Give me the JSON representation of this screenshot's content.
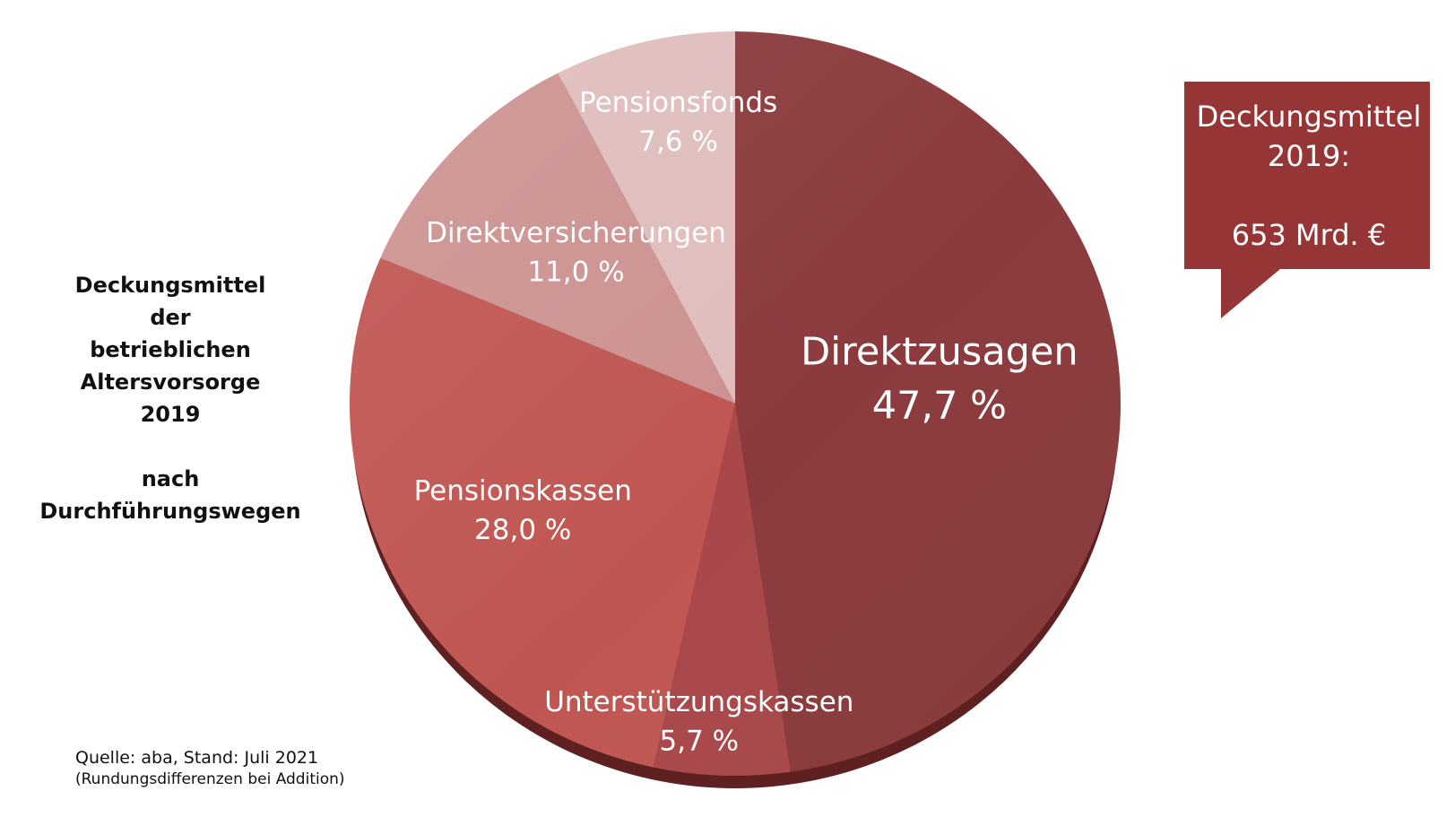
{
  "chart_data": {
    "type": "pie",
    "slices": [
      {
        "label": "Direktzusagen",
        "value": 47.7,
        "value_text": "47,7 %",
        "color": "#8B3A3D"
      },
      {
        "label": "Unterstützungskassen",
        "value": 5.7,
        "value_text": "5,7 %",
        "color": "#A9474A"
      },
      {
        "label": "Pensionskassen",
        "value": 28.0,
        "value_text": "28,0 %",
        "color": "#C05652"
      },
      {
        "label": "Direktversicherungen",
        "value": 11.0,
        "value_text": "11,0 %",
        "color": "#CC9291"
      },
      {
        "label": "Pensionsfonds",
        "value": 7.6,
        "value_text": "7,6 %",
        "color": "#DFBDBC"
      }
    ],
    "shadow_color": "#5E2020"
  },
  "side_title": {
    "lines": [
      "Deckungsmittel",
      "der",
      "betrieblichen",
      "Altersvorsorge",
      "2019"
    ],
    "subtitle": "nach Durchführungswegen"
  },
  "callout": {
    "line1": "Deckungsmittel",
    "line2": "2019:",
    "line3": "653 Mrd. €",
    "color": "#963536"
  },
  "source": {
    "main": "Quelle:  aba, Stand:  Juli 2021",
    "note": "(Rundungsdifferenzen bei Addition)"
  }
}
